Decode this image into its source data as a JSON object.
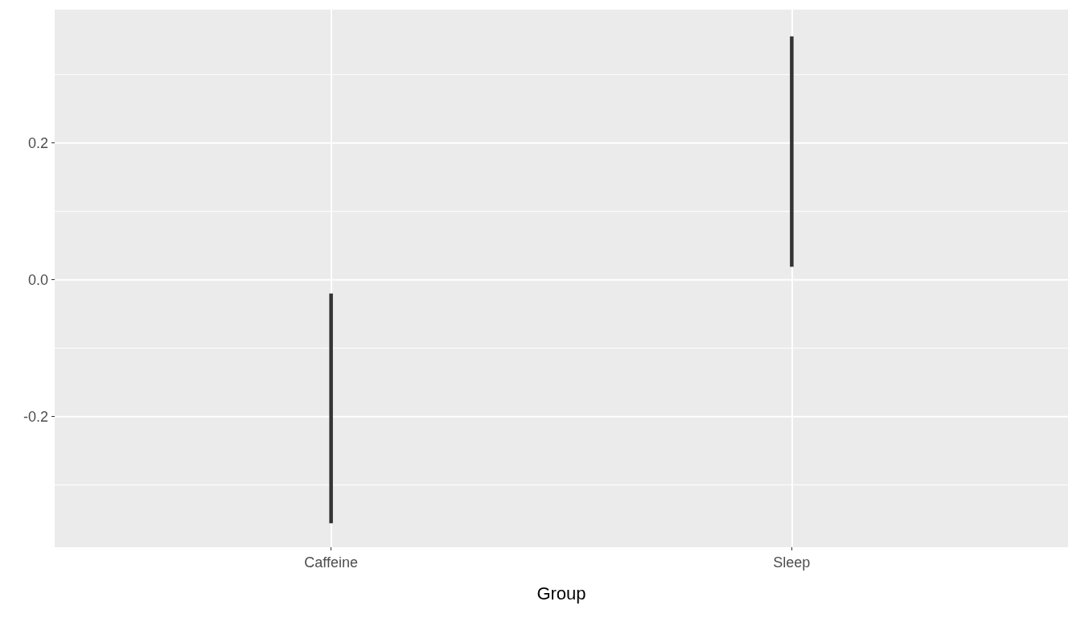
{
  "chart_data": {
    "type": "bar",
    "xlabel": "Group",
    "categories": [
      "Caffeine",
      "Sleep"
    ],
    "base": [
      -0.356,
      0.019
    ],
    "values": [
      0.336,
      0.337
    ],
    "color": "#333333",
    "ylim": [
      -0.391,
      0.395
    ],
    "yticks": [
      {
        "value": -0.3,
        "label": null
      },
      -0.2,
      {
        "value": -0.1,
        "label": null
      },
      {
        "value": 0,
        "label": "0.0"
      },
      {
        "value": 0.1,
        "label": null
      },
      0.2,
      {
        "value": 0.3,
        "label": null
      }
    ],
    "grid": true
  }
}
